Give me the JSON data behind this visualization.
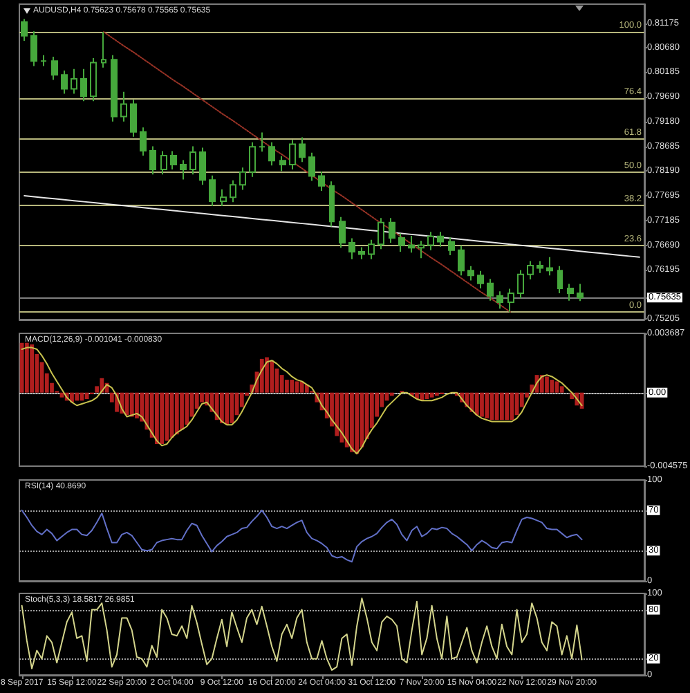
{
  "chart_data": [
    {
      "type": "candlestick",
      "title": "AUDUSD,H4 0.75623 0.75678 0.75565 0.75635",
      "color": "#46a83c",
      "marker": "none",
      "tick_labels": "y",
      "categories": [
        null,
        null,
        null,
        null,
        null,
        null,
        null,
        null,
        null,
        null,
        null,
        null,
        null,
        null,
        null,
        null,
        null,
        null,
        null,
        null,
        null,
        null,
        null,
        null,
        null,
        null,
        null,
        null,
        null,
        null,
        null,
        null,
        null,
        null,
        null,
        null,
        null,
        null,
        null,
        null,
        null,
        null,
        null,
        null,
        null,
        null,
        null,
        null,
        null,
        null,
        null,
        null,
        null,
        null,
        null,
        null,
        null,
        null,
        null,
        null,
        null,
        null,
        null
      ],
      "ohlc": [
        [
          0.812,
          0.8126,
          0.8082,
          0.8092
        ],
        [
          0.8092,
          0.8101,
          0.8031,
          0.8041
        ],
        [
          0.8041,
          0.8053,
          0.8031,
          0.8041
        ],
        [
          0.8041,
          0.805,
          0.8003,
          0.8013
        ],
        [
          0.8013,
          0.8022,
          0.7975,
          0.7985
        ],
        [
          0.7985,
          0.8025,
          0.7975,
          0.8005
        ],
        [
          0.8005,
          0.8025,
          0.796,
          0.797
        ],
        [
          0.797,
          0.8047,
          0.796,
          0.8038
        ],
        [
          0.8038,
          0.81,
          0.8028,
          0.8044
        ],
        [
          0.8044,
          0.8053,
          0.7919,
          0.7929
        ],
        [
          0.7929,
          0.7979,
          0.7919,
          0.7954
        ],
        [
          0.7954,
          0.7963,
          0.7888,
          0.7898
        ],
        [
          0.7898,
          0.7907,
          0.785,
          0.786
        ],
        [
          0.786,
          0.7869,
          0.7812,
          0.7822
        ],
        [
          0.7822,
          0.7859,
          0.7812,
          0.785
        ],
        [
          0.785,
          0.7859,
          0.7822,
          0.7832
        ],
        [
          0.7832,
          0.7841,
          0.7802,
          0.7822
        ],
        [
          0.7822,
          0.7869,
          0.7812,
          0.7857
        ],
        [
          0.7857,
          0.7866,
          0.7791,
          0.7801
        ],
        [
          0.7801,
          0.781,
          0.7748,
          0.7758
        ],
        [
          0.7758,
          0.7782,
          0.7748,
          0.7766
        ],
        [
          0.7766,
          0.78,
          0.7756,
          0.7791
        ],
        [
          0.7791,
          0.7826,
          0.7781,
          0.7817
        ],
        [
          0.7817,
          0.7877,
          0.7807,
          0.7868
        ],
        [
          0.7868,
          0.7897,
          0.7858,
          0.7868
        ],
        [
          0.7868,
          0.7877,
          0.783,
          0.784
        ],
        [
          0.784,
          0.7849,
          0.7819,
          0.7832
        ],
        [
          0.7832,
          0.7882,
          0.7822,
          0.7873
        ],
        [
          0.7873,
          0.7887,
          0.7837,
          0.7847
        ],
        [
          0.7847,
          0.7856,
          0.7799,
          0.7809
        ],
        [
          0.7809,
          0.7818,
          0.7779,
          0.7789
        ],
        [
          0.7789,
          0.7798,
          0.7707,
          0.7717
        ],
        [
          0.7717,
          0.7726,
          0.7664,
          0.7674
        ],
        [
          0.7674,
          0.7683,
          0.7641,
          0.7656
        ],
        [
          0.7656,
          0.7665,
          0.7641,
          0.7651
        ],
        [
          0.7651,
          0.768,
          0.7641,
          0.7671
        ],
        [
          0.7671,
          0.7724,
          0.7661,
          0.7715
        ],
        [
          0.7715,
          0.7724,
          0.7674,
          0.7684
        ],
        [
          0.7684,
          0.7693,
          0.7656,
          0.7669
        ],
        [
          0.7669,
          0.7688,
          0.7654,
          0.7664
        ],
        [
          0.7664,
          0.7678,
          0.7643,
          0.7669
        ],
        [
          0.7669,
          0.7696,
          0.7659,
          0.7687
        ],
        [
          0.7687,
          0.7696,
          0.7666,
          0.7676
        ],
        [
          0.7676,
          0.7685,
          0.7649,
          0.7659
        ],
        [
          0.7659,
          0.7668,
          0.7608,
          0.7618
        ],
        [
          0.7618,
          0.7627,
          0.7598,
          0.7608
        ],
        [
          0.7608,
          0.7617,
          0.7582,
          0.7592
        ],
        [
          0.7592,
          0.7601,
          0.7557,
          0.7567
        ],
        [
          0.7567,
          0.7576,
          0.7541,
          0.7554
        ],
        [
          0.7554,
          0.7581,
          0.7534,
          0.7572
        ],
        [
          0.7572,
          0.7619,
          0.7562,
          0.761
        ],
        [
          0.761,
          0.7637,
          0.76,
          0.7628
        ],
        [
          0.7628,
          0.7637,
          0.7613,
          0.7623
        ],
        [
          0.7623,
          0.7645,
          0.7608,
          0.7618
        ],
        [
          0.7618,
          0.7627,
          0.7572,
          0.7582
        ],
        [
          0.7582,
          0.7591,
          0.7557,
          0.7572
        ],
        [
          0.7572,
          0.7591,
          0.75565,
          0.75635
        ],
        null,
        null,
        null,
        null,
        null,
        null
      ],
      "series": [
        {
          "type": "line",
          "color": "#e6e6e6",
          "values": [
            0.7769,
            0.7767,
            0.7765,
            0.7763,
            0.7761,
            0.7759,
            0.7757,
            0.7755,
            0.7753,
            0.7751,
            0.7749,
            0.7747,
            0.7745,
            0.7743,
            0.7741,
            0.7739,
            0.7737,
            0.7735,
            0.7733,
            0.7731,
            0.7729,
            0.7727,
            0.7725,
            0.7723,
            0.7721,
            0.7719,
            0.7717,
            0.7715,
            0.7713,
            0.7711,
            0.7709,
            0.7707,
            0.7705,
            0.7703,
            0.7701,
            0.7699,
            0.7697,
            0.7695,
            0.7693,
            0.7691,
            0.7689,
            0.7687,
            0.7685,
            0.7683,
            0.7681,
            0.7679,
            0.7677,
            0.7675,
            0.7673,
            0.7671,
            0.7669,
            0.7667,
            0.7665,
            0.7663,
            0.7661,
            0.7659,
            0.7657,
            0.7655,
            0.7653,
            0.7651,
            0.7649,
            0.7647,
            0.7645
          ]
        },
        {
          "type": "line",
          "color": "#9a3326",
          "line_style": "dotted",
          "values": [
            null,
            null,
            null,
            null,
            null,
            null,
            null,
            null,
            0.81,
            0.8086,
            0.8072,
            0.8059,
            0.8045,
            0.8031,
            0.8017,
            0.8003,
            0.799,
            0.7976,
            0.7962,
            0.7948,
            0.7934,
            0.7921,
            0.7907,
            0.7893,
            0.7879,
            0.7865,
            0.7852,
            0.7838,
            0.7824,
            0.781,
            0.7796,
            0.7782,
            0.7769,
            0.7755,
            0.7741,
            0.7727,
            0.7713,
            0.77,
            0.7686,
            0.7672,
            0.7658,
            0.7644,
            0.7631,
            0.7617,
            0.7603,
            0.7589,
            0.7575,
            0.7562,
            0.7548,
            0.7534,
            null,
            null,
            null,
            null,
            null,
            null,
            null,
            null,
            null,
            null,
            null,
            null,
            null
          ]
        }
      ],
      "ylim": [
        0.7519,
        0.8156
      ],
      "yticks": [
        0.81175,
        {
          "value": 0.8068,
          "label": "0.80680"
        },
        0.80185,
        {
          "value": 0.7969,
          "label": "0.79690"
        },
        {
          "value": 0.7918,
          "label": "0.79180"
        },
        0.78685,
        {
          "value": 0.7819,
          "label": "0.78190"
        },
        0.77695,
        0.77185,
        {
          "value": 0.7669,
          "label": "0.76690"
        },
        0.76195,
        {
          "value": 0.75635,
          "label": "0.75635"
        },
        0.75205
      ],
      "ref_lines": [
        {
          "axis": "y",
          "value": 0.81,
          "color": "#b7b77c"
        },
        {
          "axis": "y",
          "value": 0.7966,
          "color": "#b7b77c"
        },
        {
          "axis": "y",
          "value": 0.7884,
          "color": "#b7b77c"
        },
        {
          "axis": "y",
          "value": 0.7817,
          "color": "#b7b77c"
        },
        {
          "axis": "y",
          "value": 0.775,
          "color": "#b7b77c"
        },
        {
          "axis": "y",
          "value": 0.7668,
          "color": "#b7b77c"
        },
        {
          "axis": "y",
          "value": 0.7534,
          "color": "#b7b77c"
        },
        {
          "axis": "y",
          "value": 0.75635,
          "color": "#7f7f7f"
        }
      ],
      "annotations": [
        {
          "text": "100.0",
          "y": 0.81
        },
        {
          "text": "76.4",
          "y": 0.7966
        },
        {
          "text": "61.8",
          "y": 0.7884
        },
        {
          "text": "50.0",
          "y": 0.7817
        },
        {
          "text": "38.2",
          "y": 0.775
        },
        {
          "text": "23.6",
          "y": 0.7668
        },
        {
          "text": "0.0",
          "y": 0.7534
        }
      ]
    },
    {
      "type": "bar",
      "title": "MACD(12,26,9) -0.001041 -0.000830",
      "marker": "none",
      "tick_labels": "y",
      "categories": [
        null,
        null,
        null,
        null,
        null,
        null,
        null,
        null,
        null,
        null,
        null,
        null,
        null,
        null,
        null,
        null,
        null,
        null,
        null,
        null,
        null,
        null,
        null,
        null,
        null,
        null,
        null,
        null,
        null,
        null,
        null,
        null,
        null,
        null,
        null,
        null,
        null,
        null,
        null,
        null,
        null,
        null,
        null,
        null,
        null,
        null,
        null,
        null,
        null,
        null,
        null,
        null,
        null,
        null,
        null,
        null,
        null,
        null,
        null,
        null,
        null,
        null,
        null,
        null,
        null,
        null,
        null,
        null,
        null,
        null,
        null,
        null,
        null,
        null,
        null,
        null,
        null,
        null,
        null,
        null,
        null,
        null,
        null,
        null,
        null,
        null,
        null,
        null,
        null,
        null,
        null,
        null,
        null,
        null,
        null,
        null,
        null,
        null,
        null,
        null,
        null,
        null,
        null,
        null,
        null,
        null,
        null,
        null,
        null,
        null,
        null,
        null,
        null,
        null,
        null,
        null,
        null,
        null,
        null,
        null,
        null,
        null,
        null,
        null,
        null
      ],
      "series": [
        {
          "color": "#b01e1e",
          "values": [
            0.0031,
            0.0031,
            0.003,
            0.0024,
            0.0019,
            0.0012,
            0.0006,
            0.0001,
            -0.0003,
            -0.0005,
            -0.0006,
            -0.0005,
            -0.0005,
            -0.0004,
            -0.0001,
            0.0004,
            0.0009,
            0.0006,
            -0.0006,
            -0.0012,
            -0.0013,
            -0.0014,
            -0.0015,
            -0.0016,
            -0.0018,
            -0.0023,
            -0.0028,
            -0.0032,
            -0.0032,
            -0.003,
            -0.0028,
            -0.0026,
            -0.0023,
            -0.002,
            -0.0015,
            -0.001,
            -0.0006,
            -0.0008,
            -0.0012,
            -0.0017,
            -0.0019,
            -0.002,
            -0.0019,
            -0.0014,
            -0.0009,
            -0.0002,
            0.0005,
            0.0013,
            0.0021,
            0.0022,
            0.002,
            0.0015,
            0.0011,
            0.0008,
            0.0008,
            0.0007,
            0.0007,
            0.0005,
            0.0001,
            -0.0006,
            -0.0011,
            -0.0016,
            -0.0021,
            -0.0027,
            -0.0031,
            -0.0034,
            -0.0037,
            -0.0038,
            -0.0034,
            -0.0029,
            -0.0022,
            -0.0015,
            -0.0009,
            -0.0005,
            -0.0002,
            0.0,
            0.0001,
            0.0,
            -0.0002,
            -0.0004,
            -0.0005,
            -0.0004,
            -0.0003,
            -0.0002,
            -0.0001,
            0.0,
            0.0,
            -0.0002,
            -0.0006,
            -0.0009,
            -0.0012,
            -0.0014,
            -0.0015,
            -0.0016,
            -0.0017,
            -0.0017,
            -0.0017,
            -0.0017,
            -0.0017,
            -0.0014,
            -0.0009,
            -0.0003,
            0.0005,
            0.0011,
            0.0011,
            0.001,
            0.0008,
            0.0007,
            0.0004,
            0.0,
            -0.0004,
            -0.0008,
            -0.001,
            null,
            null,
            null,
            null,
            null,
            null,
            null,
            null,
            null,
            null,
            null,
            null
          ]
        },
        {
          "type": "line",
          "color": "#c9c34e",
          "values": [
            0.0027,
            0.0028,
            0.0028,
            0.0027,
            0.0023,
            0.0018,
            0.0012,
            0.0007,
            0.0002,
            -0.0003,
            -0.0006,
            -0.0008,
            -0.0007,
            -0.0006,
            -0.0005,
            -0.0003,
            0.0001,
            0.0005,
            0.0003,
            -0.0002,
            -0.001,
            -0.0015,
            -0.0014,
            -0.0013,
            -0.0015,
            -0.002,
            -0.0025,
            -0.003,
            -0.0033,
            -0.0032,
            -0.0028,
            -0.0025,
            -0.0023,
            -0.0021,
            -0.0017,
            -0.0012,
            -0.0007,
            -0.0006,
            -0.001,
            -0.0014,
            -0.0018,
            -0.002,
            -0.002,
            -0.0017,
            -0.0012,
            -0.0006,
            0.0,
            0.0008,
            0.0014,
            0.0019,
            0.002,
            0.0018,
            0.0015,
            0.0013,
            0.001,
            0.0008,
            0.0007,
            0.0005,
            0.0003,
            -0.0002,
            -0.0008,
            -0.0012,
            -0.0017,
            -0.0021,
            -0.0025,
            -0.003,
            -0.0035,
            -0.0038,
            -0.0034,
            -0.0028,
            -0.0023,
            -0.0019,
            -0.0014,
            -0.0009,
            -0.0006,
            -0.0003,
            0.0,
            0.0,
            -0.0002,
            -0.0004,
            -0.0005,
            -0.0005,
            -0.0005,
            -0.0004,
            -0.0003,
            -0.0001,
            0.0,
            0.0,
            -0.0004,
            -0.0008,
            -0.0011,
            -0.0014,
            -0.0016,
            -0.0017,
            -0.0018,
            -0.0018,
            -0.0018,
            -0.0018,
            -0.0018,
            -0.0016,
            -0.0012,
            -0.0006,
            0.0,
            0.0006,
            0.001,
            0.0011,
            0.001,
            0.0008,
            0.0006,
            0.0003,
            0.0,
            -0.0004,
            -0.0008,
            null,
            null,
            null,
            null,
            null,
            null,
            null,
            null,
            null,
            null,
            null,
            null
          ]
        }
      ],
      "ylim": [
        -0.004575,
        0.003687
      ],
      "yticks": [
        -0.004575,
        {
          "value": 0,
          "label": "0.00"
        },
        0.003687
      ],
      "ref_lines": [
        {
          "axis": "y",
          "value": 0,
          "color": "#bdbdbd",
          "line_style": "dotted"
        }
      ]
    },
    {
      "type": "line",
      "title": "RSI(14) 40.8690",
      "color": "#6270c8",
      "marker": "none",
      "tick_labels": "y",
      "categories": [
        null,
        null,
        null,
        null,
        null,
        null,
        null,
        null,
        null,
        null,
        null,
        null,
        null,
        null,
        null,
        null,
        null,
        null,
        null,
        null,
        null,
        null,
        null,
        null,
        null,
        null,
        null,
        null,
        null,
        null,
        null,
        null,
        null,
        null,
        null,
        null,
        null,
        null,
        null,
        null,
        null,
        null,
        null,
        null,
        null,
        null,
        null,
        null,
        null,
        null,
        null,
        null,
        null,
        null,
        null,
        null,
        null,
        null,
        null,
        null,
        null,
        null,
        null,
        null,
        null,
        null,
        null,
        null,
        null,
        null,
        null,
        null,
        null,
        null,
        null,
        null,
        null,
        null,
        null,
        null,
        null,
        null,
        null,
        null,
        null,
        null,
        null,
        null,
        null,
        null,
        null,
        null,
        null,
        null,
        null,
        null,
        null,
        null,
        null,
        null,
        null,
        null,
        null,
        null,
        null,
        null,
        null,
        null,
        null,
        null,
        null,
        null,
        null,
        null,
        null,
        null,
        null,
        null,
        null,
        null,
        null,
        null,
        null,
        null,
        null
      ],
      "values": [
        70,
        63,
        55,
        49,
        46,
        51,
        47,
        40,
        44,
        48,
        51,
        51,
        46,
        45,
        50,
        58,
        67,
        52,
        38,
        38,
        46,
        48,
        45,
        38,
        31,
        30,
        31,
        38,
        40,
        41,
        42,
        41,
        41,
        50,
        57,
        55,
        45,
        37,
        29,
        35,
        39,
        44,
        46,
        48,
        52,
        53,
        59,
        64,
        70,
        63,
        54,
        52,
        54,
        52,
        55,
        58,
        60,
        48,
        42,
        40,
        37,
        33,
        25,
        23,
        24,
        21,
        19,
        34,
        39,
        42,
        44,
        47,
        53,
        58,
        61,
        56,
        46,
        40,
        50,
        54,
        44,
        47,
        52,
        51,
        53,
        52,
        47,
        44,
        40,
        36,
        30,
        36,
        40,
        37,
        33,
        32,
        38,
        39,
        38,
        50,
        61,
        63,
        62,
        60,
        58,
        52,
        51,
        51,
        47,
        43,
        45,
        46,
        41,
        null,
        null,
        null,
        null,
        null,
        null,
        null,
        null,
        null,
        null,
        null,
        null
      ],
      "ylim": [
        0,
        100
      ],
      "yticks": [
        0,
        30,
        70,
        100
      ],
      "ref_lines": [
        {
          "axis": "y",
          "value": 70,
          "color": "#a0a0a0",
          "line_style": "dotted"
        },
        {
          "axis": "y",
          "value": 30,
          "color": "#a0a0a0",
          "line_style": "dotted"
        }
      ]
    },
    {
      "type": "line",
      "title": "Stoch(5,3,3) 18.5817 26.9851",
      "color": "#d4d58c",
      "marker": "none",
      "categories": [
        "8 Sep 2017",
        null,
        null,
        null,
        null,
        null,
        null,
        null,
        null,
        null,
        "15 Sep 12:00",
        null,
        null,
        null,
        null,
        null,
        null,
        null,
        null,
        null,
        "22 Sep 20:00",
        null,
        null,
        null,
        null,
        null,
        null,
        null,
        null,
        null,
        "2 Oct 04:00",
        null,
        null,
        null,
        null,
        null,
        null,
        null,
        null,
        null,
        "9 Oct 12:00",
        null,
        null,
        null,
        null,
        null,
        null,
        null,
        null,
        null,
        "16 Oct 20:00",
        null,
        null,
        null,
        null,
        null,
        null,
        null,
        null,
        null,
        "24 Oct 04:00",
        null,
        null,
        null,
        null,
        null,
        null,
        null,
        null,
        null,
        "31 Oct 12:00",
        null,
        null,
        null,
        null,
        null,
        null,
        null,
        null,
        null,
        "7 Nov 20:00",
        null,
        null,
        null,
        null,
        null,
        null,
        null,
        null,
        null,
        "15 Nov 04:00",
        null,
        null,
        null,
        null,
        null,
        null,
        null,
        null,
        null,
        "22 Nov 12:00",
        null,
        null,
        null,
        null,
        null,
        null,
        null,
        null,
        null,
        "29 Nov 20:00",
        null,
        null,
        null,
        null,
        null,
        null,
        null,
        null,
        null,
        null,
        null,
        null,
        null,
        null
      ],
      "values": [
        85,
        42,
        8,
        30,
        20,
        48,
        40,
        15,
        40,
        65,
        77,
        45,
        48,
        17,
        80,
        80,
        88,
        55,
        10,
        25,
        70,
        70,
        55,
        22,
        20,
        10,
        36,
        22,
        80,
        70,
        50,
        48,
        60,
        45,
        85,
        64,
        38,
        13,
        20,
        45,
        68,
        35,
        77,
        58,
        40,
        70,
        80,
        62,
        84,
        60,
        35,
        17,
        50,
        62,
        45,
        70,
        80,
        40,
        20,
        20,
        42,
        20,
        6,
        10,
        45,
        50,
        12,
        60,
        94,
        70,
        40,
        30,
        65,
        72,
        68,
        60,
        20,
        15,
        55,
        90,
        25,
        45,
        85,
        45,
        20,
        72,
        20,
        22,
        40,
        58,
        30,
        15,
        40,
        60,
        35,
        20,
        62,
        35,
        25,
        80,
        40,
        50,
        88,
        70,
        40,
        30,
        65,
        60,
        25,
        48,
        20,
        61,
        19,
        null,
        null,
        null,
        null,
        null,
        null,
        null,
        null,
        null,
        null,
        null,
        null
      ],
      "ylim": [
        0,
        100
      ],
      "yticks": [
        0,
        20,
        80,
        100
      ],
      "ref_lines": [
        {
          "axis": "y",
          "value": 80,
          "color": "#a0a0a0",
          "line_style": "dotted"
        },
        {
          "axis": "y",
          "value": 20,
          "color": "#a0a0a0",
          "line_style": "dotted"
        }
      ]
    }
  ]
}
